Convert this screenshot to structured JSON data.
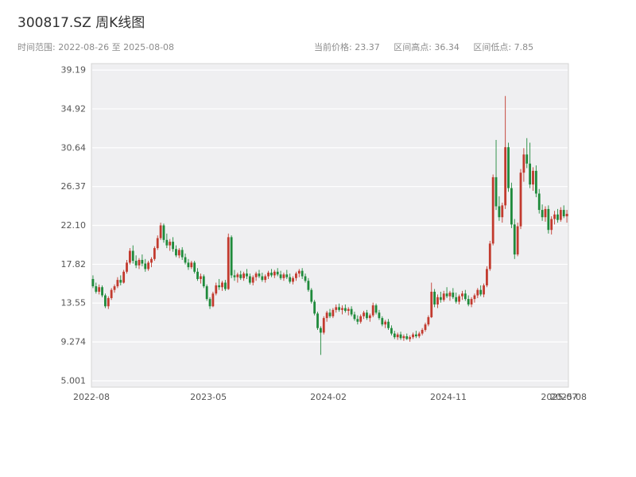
{
  "header": {
    "title": "300817.SZ 周K线图"
  },
  "subtitle": {
    "time_range": "时间范围: 2022-08-26 至 2025-08-08"
  },
  "stats": {
    "current": "当前价格: 23.37",
    "high": "区间高点: 36.34",
    "low": "区间低点: 7.85"
  },
  "chart_data": {
    "type": "candlestick",
    "title": "300817.SZ 周K线图",
    "period": "weekly",
    "x_start": "2022-08-26",
    "x_end": "2025-08-08",
    "current_price": 23.37,
    "range_high": 36.34,
    "range_low": 7.85,
    "up_color": "#c23a2e",
    "down_color": "#1f8a3b",
    "plot_bg": "#efeff1",
    "grid_color": "#ffffff",
    "axis_text_color": "#555555",
    "ylim": [
      4.3,
      39.9
    ],
    "ytick_labels": [
      "5.001",
      "9.274",
      "13.55",
      "17.82",
      "22.10",
      "26.37",
      "30.64",
      "34.92",
      "39.19"
    ],
    "xticks": [
      {
        "label": "2022-08",
        "week": 0
      },
      {
        "label": "2023-05",
        "week": 38
      },
      {
        "label": "2024-02",
        "week": 77
      },
      {
        "label": "2024-11",
        "week": 116
      },
      {
        "label": "2025-07",
        "week": 152
      },
      {
        "label": "2025-08",
        "week": 155
      }
    ],
    "ohlc": [
      [
        16.2,
        16.6,
        15.2,
        15.4
      ],
      [
        15.4,
        15.8,
        14.6,
        14.8
      ],
      [
        14.8,
        15.6,
        14.5,
        15.3
      ],
      [
        15.3,
        15.5,
        14.2,
        14.4
      ],
      [
        14.4,
        14.6,
        13.0,
        13.2
      ],
      [
        13.2,
        14.3,
        12.9,
        14.1
      ],
      [
        14.1,
        15.2,
        13.9,
        15.0
      ],
      [
        15.0,
        15.6,
        14.7,
        15.4
      ],
      [
        15.4,
        16.4,
        15.2,
        16.1
      ],
      [
        16.1,
        16.6,
        15.5,
        15.8
      ],
      [
        15.8,
        17.2,
        15.7,
        17.0
      ],
      [
        17.0,
        18.3,
        16.8,
        18.0
      ],
      [
        18.0,
        19.6,
        17.8,
        19.3
      ],
      [
        19.3,
        19.9,
        17.9,
        18.2
      ],
      [
        18.2,
        18.8,
        17.4,
        17.7
      ],
      [
        17.7,
        18.5,
        17.3,
        18.3
      ],
      [
        18.3,
        18.9,
        17.6,
        17.9
      ],
      [
        17.9,
        18.4,
        17.0,
        17.3
      ],
      [
        17.3,
        18.2,
        17.1,
        18.0
      ],
      [
        18.0,
        18.6,
        17.5,
        18.4
      ],
      [
        18.4,
        19.8,
        18.2,
        19.6
      ],
      [
        19.6,
        21.0,
        19.4,
        20.7
      ],
      [
        20.7,
        22.4,
        20.5,
        22.1
      ],
      [
        22.1,
        22.3,
        20.2,
        20.5
      ],
      [
        20.5,
        21.2,
        19.6,
        19.9
      ],
      [
        19.9,
        20.6,
        19.3,
        20.3
      ],
      [
        20.3,
        20.8,
        19.2,
        19.5
      ],
      [
        19.5,
        19.9,
        18.6,
        18.8
      ],
      [
        18.8,
        19.6,
        18.5,
        19.4
      ],
      [
        19.4,
        19.7,
        18.3,
        18.6
      ],
      [
        18.6,
        19.0,
        17.8,
        18.0
      ],
      [
        18.0,
        18.4,
        17.2,
        17.5
      ],
      [
        17.5,
        18.2,
        17.3,
        18.0
      ],
      [
        18.0,
        18.2,
        16.8,
        17.0
      ],
      [
        17.0,
        17.4,
        16.0,
        16.2
      ],
      [
        16.2,
        16.8,
        15.7,
        16.5
      ],
      [
        16.5,
        16.7,
        15.2,
        15.4
      ],
      [
        15.4,
        15.6,
        13.8,
        14.0
      ],
      [
        14.0,
        14.2,
        12.9,
        13.2
      ],
      [
        13.2,
        14.8,
        13.1,
        14.6
      ],
      [
        14.6,
        15.8,
        14.4,
        15.5
      ],
      [
        15.5,
        16.2,
        15.0,
        15.3
      ],
      [
        15.3,
        16.0,
        14.9,
        15.8
      ],
      [
        15.8,
        16.1,
        14.9,
        15.1
      ],
      [
        15.1,
        21.2,
        15.0,
        20.8
      ],
      [
        20.8,
        21.0,
        16.3,
        16.6
      ],
      [
        16.6,
        17.2,
        16.0,
        16.4
      ],
      [
        16.4,
        16.9,
        15.8,
        16.7
      ],
      [
        16.7,
        17.1,
        16.1,
        16.3
      ],
      [
        16.3,
        17.0,
        16.0,
        16.8
      ],
      [
        16.8,
        17.3,
        16.2,
        16.5
      ],
      [
        16.5,
        16.8,
        15.6,
        15.8
      ],
      [
        15.8,
        16.6,
        15.5,
        16.4
      ],
      [
        16.4,
        17.0,
        16.0,
        16.8
      ],
      [
        16.8,
        17.2,
        16.3,
        16.5
      ],
      [
        16.5,
        16.9,
        15.9,
        16.1
      ],
      [
        16.1,
        16.7,
        15.8,
        16.5
      ],
      [
        16.5,
        17.1,
        16.2,
        16.9
      ],
      [
        16.9,
        17.3,
        16.4,
        16.6
      ],
      [
        16.6,
        17.2,
        16.3,
        17.0
      ],
      [
        17.0,
        17.4,
        16.5,
        16.7
      ],
      [
        16.7,
        17.1,
        16.1,
        16.3
      ],
      [
        16.3,
        16.9,
        16.0,
        16.7
      ],
      [
        16.7,
        17.2,
        16.2,
        16.4
      ],
      [
        16.4,
        16.8,
        15.7,
        15.9
      ],
      [
        15.9,
        16.5,
        15.6,
        16.3
      ],
      [
        16.3,
        17.0,
        16.0,
        16.8
      ],
      [
        16.8,
        17.3,
        16.4,
        17.1
      ],
      [
        17.1,
        17.4,
        16.2,
        16.5
      ],
      [
        16.5,
        16.8,
        15.8,
        16.0
      ],
      [
        16.0,
        16.3,
        14.8,
        15.0
      ],
      [
        15.0,
        15.2,
        13.5,
        13.7
      ],
      [
        13.7,
        13.9,
        12.2,
        12.4
      ],
      [
        12.4,
        12.6,
        10.6,
        10.8
      ],
      [
        10.8,
        11.0,
        7.85,
        10.3
      ],
      [
        10.3,
        12.1,
        10.1,
        11.9
      ],
      [
        11.9,
        12.7,
        11.5,
        12.5
      ],
      [
        12.5,
        12.9,
        11.9,
        12.1
      ],
      [
        12.1,
        13.0,
        11.9,
        12.8
      ],
      [
        12.8,
        13.4,
        12.5,
        13.1
      ],
      [
        13.1,
        13.5,
        12.6,
        12.8
      ],
      [
        12.8,
        13.3,
        12.3,
        13.0
      ],
      [
        13.0,
        13.4,
        12.5,
        12.7
      ],
      [
        12.7,
        13.1,
        12.2,
        12.9
      ],
      [
        12.9,
        13.2,
        12.1,
        12.3
      ],
      [
        12.3,
        12.6,
        11.6,
        11.8
      ],
      [
        11.8,
        12.2,
        11.2,
        11.5
      ],
      [
        11.5,
        12.3,
        11.3,
        12.1
      ],
      [
        12.1,
        12.7,
        11.8,
        12.5
      ],
      [
        12.5,
        12.8,
        11.7,
        11.9
      ],
      [
        11.9,
        12.4,
        11.5,
        12.2
      ],
      [
        12.2,
        13.6,
        12.0,
        13.3
      ],
      [
        13.3,
        13.5,
        12.3,
        12.5
      ],
      [
        12.5,
        12.8,
        11.7,
        11.9
      ],
      [
        11.9,
        12.1,
        11.0,
        11.2
      ],
      [
        11.2,
        11.7,
        10.8,
        11.5
      ],
      [
        11.5,
        11.8,
        10.6,
        10.8
      ],
      [
        10.8,
        11.1,
        10.0,
        10.2
      ],
      [
        10.2,
        10.5,
        9.6,
        9.8
      ],
      [
        9.8,
        10.3,
        9.5,
        10.1
      ],
      [
        10.1,
        10.4,
        9.5,
        9.7
      ],
      [
        9.7,
        10.1,
        9.4,
        9.9
      ],
      [
        9.9,
        10.2,
        9.5,
        9.6
      ],
      [
        9.6,
        10.0,
        9.3,
        9.8
      ],
      [
        9.8,
        10.3,
        9.6,
        10.1
      ],
      [
        10.1,
        10.5,
        9.7,
        9.9
      ],
      [
        9.9,
        10.4,
        9.7,
        10.2
      ],
      [
        10.2,
        10.8,
        10.0,
        10.6
      ],
      [
        10.6,
        11.4,
        10.4,
        11.2
      ],
      [
        11.2,
        12.2,
        11.0,
        12.0
      ],
      [
        12.0,
        15.8,
        11.9,
        14.8
      ],
      [
        14.8,
        15.1,
        13.1,
        13.4
      ],
      [
        13.4,
        14.5,
        13.0,
        14.2
      ],
      [
        14.2,
        14.8,
        13.6,
        13.9
      ],
      [
        13.9,
        14.9,
        13.7,
        14.6
      ],
      [
        14.6,
        15.3,
        14.1,
        14.3
      ],
      [
        14.3,
        14.9,
        13.8,
        14.7
      ],
      [
        14.7,
        15.2,
        14.0,
        14.2
      ],
      [
        14.2,
        14.7,
        13.5,
        13.7
      ],
      [
        13.7,
        14.5,
        13.4,
        14.3
      ],
      [
        14.3,
        14.9,
        13.9,
        14.6
      ],
      [
        14.6,
        15.0,
        13.8,
        14.0
      ],
      [
        14.0,
        14.4,
        13.2,
        13.4
      ],
      [
        13.4,
        14.2,
        13.1,
        14.0
      ],
      [
        14.0,
        14.6,
        13.6,
        14.4
      ],
      [
        14.4,
        15.2,
        14.1,
        15.0
      ],
      [
        15.0,
        15.5,
        14.3,
        14.5
      ],
      [
        14.5,
        15.7,
        14.2,
        15.5
      ],
      [
        15.5,
        17.6,
        15.3,
        17.3
      ],
      [
        17.3,
        20.4,
        17.1,
        20.1
      ],
      [
        20.1,
        27.7,
        19.9,
        27.4
      ],
      [
        27.4,
        31.5,
        23.8,
        24.2
      ],
      [
        24.2,
        25.3,
        22.6,
        23.0
      ],
      [
        23.0,
        24.6,
        22.4,
        24.3
      ],
      [
        24.3,
        36.34,
        23.9,
        30.7
      ],
      [
        30.7,
        31.2,
        25.8,
        26.2
      ],
      [
        26.2,
        26.8,
        21.8,
        22.2
      ],
      [
        22.2,
        22.8,
        18.4,
        18.9
      ],
      [
        18.9,
        22.4,
        18.7,
        22.0
      ],
      [
        22.0,
        28.3,
        21.7,
        27.9
      ],
      [
        27.9,
        30.6,
        26.9,
        29.9
      ],
      [
        29.9,
        31.7,
        28.4,
        28.9
      ],
      [
        28.9,
        31.2,
        26.2,
        26.6
      ],
      [
        26.6,
        28.5,
        25.9,
        28.1
      ],
      [
        28.1,
        28.7,
        25.2,
        25.6
      ],
      [
        25.6,
        26.1,
        23.4,
        23.8
      ],
      [
        23.8,
        24.4,
        22.6,
        23.0
      ],
      [
        23.0,
        24.2,
        22.5,
        23.9
      ],
      [
        23.9,
        24.3,
        21.2,
        21.6
      ],
      [
        21.6,
        23.1,
        21.1,
        22.8
      ],
      [
        22.8,
        23.7,
        22.2,
        23.3
      ],
      [
        23.3,
        23.9,
        22.4,
        22.7
      ],
      [
        22.7,
        24.1,
        22.5,
        23.8
      ],
      [
        23.8,
        24.3,
        22.9,
        23.1
      ],
      [
        23.1,
        23.8,
        22.4,
        23.37
      ]
    ]
  }
}
